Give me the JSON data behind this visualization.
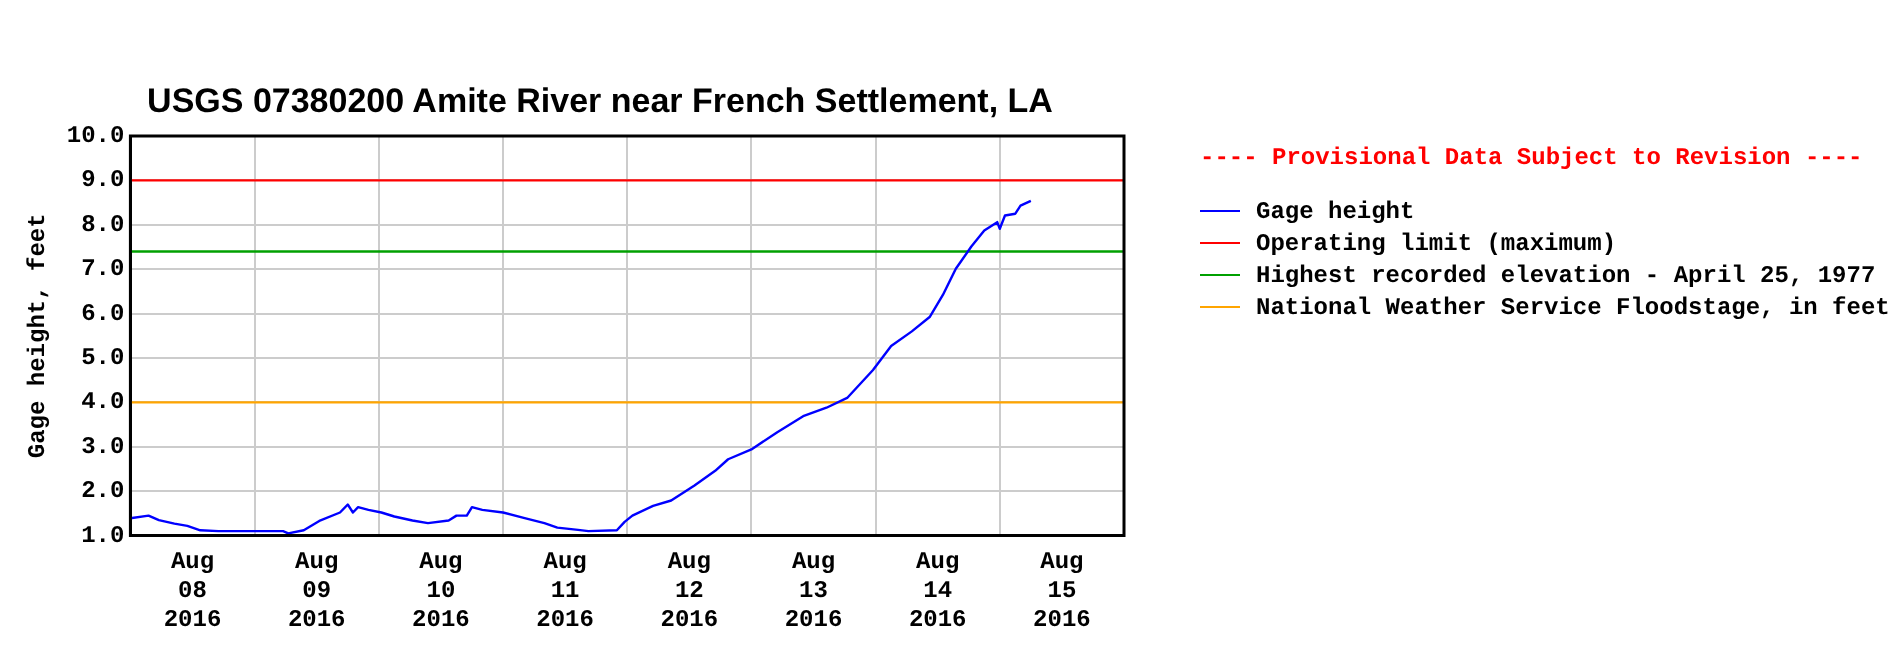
{
  "chart_data": {
    "type": "line",
    "title": "USGS 07380200 Amite River near French Settlement, LA",
    "ylabel": "Gage height, feet",
    "legend_title": "---- Provisional Data Subject to Revision ----",
    "legend": "right",
    "x": [
      "2016-08-08T00:00",
      "2016-08-08T03:30",
      "2016-08-08T05:30",
      "2016-08-08T08:30",
      "2016-08-08T11:00",
      "2016-08-08T13:30",
      "2016-08-08T17:00",
      "2016-08-09T05:30",
      "2016-08-09T06:30",
      "2016-08-09T09:30",
      "2016-08-09T12:30",
      "2016-08-09T16:30",
      "2016-08-09T18:00",
      "2016-08-09T19:00",
      "2016-08-09T20:00",
      "2016-08-09T22:00",
      "2016-08-10T00:30",
      "2016-08-10T03:00",
      "2016-08-10T06:30",
      "2016-08-10T09:30",
      "2016-08-10T13:30",
      "2016-08-10T15:00",
      "2016-08-10T17:00",
      "2016-08-10T18:00",
      "2016-08-10T20:00",
      "2016-08-11T00:00",
      "2016-08-11T04:00",
      "2016-08-11T08:00",
      "2016-08-11T10:30",
      "2016-08-11T14:30",
      "2016-08-11T16:30",
      "2016-08-11T22:00",
      "2016-08-11T23:30",
      "2016-08-12T01:00",
      "2016-08-12T05:00",
      "2016-08-12T08:30",
      "2016-08-12T13:00",
      "2016-08-12T17:00",
      "2016-08-12T19:30",
      "2016-08-13T00:00",
      "2016-08-13T05:00",
      "2016-08-13T10:00",
      "2016-08-13T14:30",
      "2016-08-13T18:30",
      "2016-08-13T23:30",
      "2016-08-14T03:00",
      "2016-08-14T07:00",
      "2016-08-14T10:30",
      "2016-08-14T13:00",
      "2016-08-14T15:30",
      "2016-08-14T18:30",
      "2016-08-14T21:00",
      "2016-08-14T23:30",
      "2016-08-15T00:00",
      "2016-08-15T01:00",
      "2016-08-15T03:00",
      "2016-08-15T04:00",
      "2016-08-15T06:00"
    ],
    "series": [
      {
        "name": "Gage height",
        "color": "#0000ff",
        "values": [
          1.39,
          1.45,
          1.35,
          1.27,
          1.22,
          1.12,
          1.1,
          1.1,
          1.05,
          1.12,
          1.33,
          1.52,
          1.7,
          1.52,
          1.64,
          1.58,
          1.52,
          1.43,
          1.34,
          1.28,
          1.34,
          1.45,
          1.45,
          1.64,
          1.58,
          1.52,
          1.4,
          1.28,
          1.18,
          1.13,
          1.1,
          1.12,
          1.31,
          1.45,
          1.67,
          1.79,
          2.13,
          2.46,
          2.72,
          2.94,
          3.33,
          3.69,
          3.88,
          4.1,
          4.73,
          5.27,
          5.6,
          5.93,
          6.42,
          7.01,
          7.51,
          7.87,
          8.06,
          7.91,
          8.21,
          8.25,
          8.43,
          8.54
        ]
      }
    ],
    "ref_lines": [
      {
        "axis": "y",
        "value": 9.0,
        "label": "Operating limit (maximum)",
        "color": "#ff0000"
      },
      {
        "axis": "y",
        "value": 7.4,
        "label": "Highest recorded elevation - April 25, 1977",
        "color": "#00a000"
      },
      {
        "axis": "y",
        "value": 4.0,
        "label": "National Weather Service Floodstage, in feet",
        "color": "#ffa500"
      }
    ],
    "xlim": [
      "2016-08-08T00:00",
      "2016-08-16T00:00"
    ],
    "xticks": [
      {
        "value": "2016-08-08T12:00",
        "label": "Aug 08 2016"
      },
      {
        "value": "2016-08-09T00:00",
        "label": null
      },
      {
        "value": "2016-08-09T12:00",
        "label": "Aug 09 2016"
      },
      {
        "value": "2016-08-10T00:00",
        "label": null
      },
      {
        "value": "2016-08-10T12:00",
        "label": "Aug 10 2016"
      },
      {
        "value": "2016-08-11T00:00",
        "label": null
      },
      {
        "value": "2016-08-11T12:00",
        "label": "Aug 11 2016"
      },
      {
        "value": "2016-08-12T00:00",
        "label": null
      },
      {
        "value": "2016-08-12T12:00",
        "label": "Aug 12 2016"
      },
      {
        "value": "2016-08-13T00:00",
        "label": null
      },
      {
        "value": "2016-08-13T12:00",
        "label": "Aug 13 2016"
      },
      {
        "value": "2016-08-14T00:00",
        "label": null
      },
      {
        "value": "2016-08-14T12:00",
        "label": "Aug 14 2016"
      },
      {
        "value": "2016-08-15T00:00",
        "label": null
      },
      {
        "value": "2016-08-15T12:00",
        "label": "Aug 15 2016"
      }
    ],
    "ylim": [
      1.0,
      10.0
    ],
    "yticks": [
      {
        "value": 1,
        "label": "1.0"
      },
      {
        "value": 2,
        "label": "2.0"
      },
      {
        "value": 3,
        "label": "3.0"
      },
      {
        "value": 4,
        "label": "4.0"
      },
      {
        "value": 5,
        "label": "5.0"
      },
      {
        "value": 6,
        "label": "6.0"
      },
      {
        "value": 7,
        "label": "7.0"
      },
      {
        "value": 8,
        "label": "8.0"
      },
      {
        "value": 9,
        "label": "9.0"
      },
      {
        "value": 10,
        "label": "10.0"
      }
    ],
    "grid": true,
    "marker": "none",
    "line_style": "solid"
  }
}
